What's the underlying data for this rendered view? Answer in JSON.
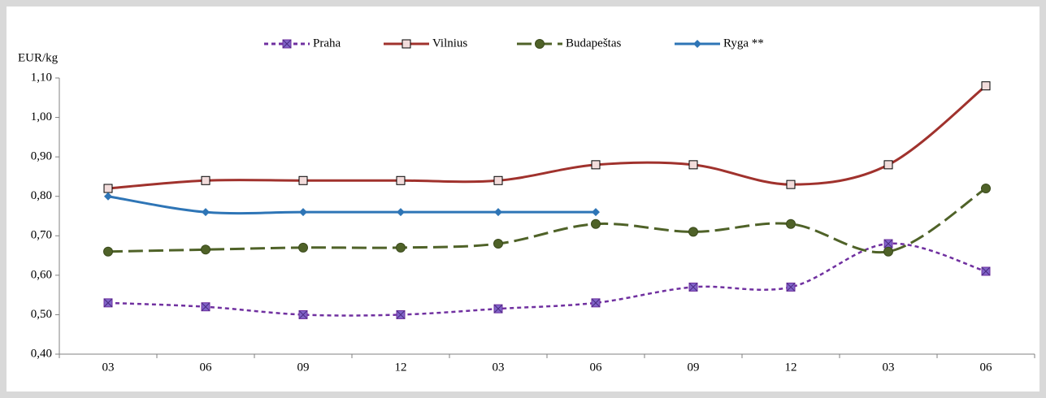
{
  "chart_data": {
    "type": "line",
    "ylabel": "EUR/kg",
    "categories": [
      "03",
      "06",
      "09",
      "12",
      "03",
      "06",
      "09",
      "12",
      "03",
      "06"
    ],
    "series": [
      {
        "name": "Praha",
        "color": "#7030a0",
        "values": [
          0.53,
          0.52,
          0.5,
          0.5,
          0.515,
          0.53,
          0.57,
          0.57,
          0.68,
          0.61
        ]
      },
      {
        "name": "Vilnius",
        "color": "#a0322d",
        "values": [
          0.82,
          0.84,
          0.84,
          0.84,
          0.84,
          0.88,
          0.88,
          0.83,
          0.88,
          1.08
        ]
      },
      {
        "name": "Budapeštas",
        "color": "#4f6228",
        "values": [
          0.66,
          0.665,
          0.67,
          0.67,
          0.68,
          0.73,
          0.71,
          0.73,
          0.66,
          0.82
        ]
      },
      {
        "name": "Ryga **",
        "color": "#2e75b6",
        "values": [
          0.8,
          0.76,
          0.76,
          0.76,
          0.76,
          0.76,
          null,
          null,
          null,
          null
        ]
      }
    ],
    "ylim": [
      0.4,
      1.1
    ],
    "yticks": [
      {
        "value": 0.4,
        "label": "0,40"
      },
      {
        "value": 0.5,
        "label": "0,50"
      },
      {
        "value": 0.6,
        "label": "0,60"
      },
      {
        "value": 0.7,
        "label": "0,70"
      },
      {
        "value": 0.8,
        "label": "0,80"
      },
      {
        "value": 0.9,
        "label": "0,90"
      },
      {
        "value": 1.0,
        "label": "1,00"
      },
      {
        "value": 1.1,
        "label": "1,10"
      }
    ],
    "grid": false,
    "legend": "top"
  }
}
